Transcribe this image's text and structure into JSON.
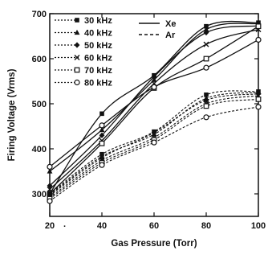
{
  "chart_data": {
    "type": "line",
    "xlabel": "Gas Pressure (Torr)",
    "ylabel": "Firing Voltage (Vrms)",
    "xlim": [
      20,
      100
    ],
    "ylim": [
      250,
      700
    ],
    "xticks": [
      20,
      40,
      60,
      80,
      100
    ],
    "yticks": [
      300,
      400,
      500,
      600,
      700
    ],
    "x_tick_labels": [
      "20",
      "40",
      "60",
      "80",
      "100"
    ],
    "y_tick_labels": [
      "300",
      "400",
      "500",
      "600",
      "700"
    ],
    "x_stray_mark": "·",
    "grid": false,
    "legend_position": "top-left",
    "legend_frequency": [
      "30 kHz",
      "40 kHz",
      "50 kHz",
      "60 kHz",
      "70 kHz",
      "80 kHz"
    ],
    "legend_gas": [
      {
        "label": "Xe",
        "dash": "solid"
      },
      {
        "label": "Ar",
        "dash": "dashed"
      }
    ],
    "x": [
      20,
      40,
      60,
      80,
      100
    ],
    "series": [
      {
        "gas": "Xe",
        "freq": "30 kHz",
        "marker": "filled-square",
        "dash": "solid",
        "values": [
          300,
          478,
          563,
          672,
          680
        ]
      },
      {
        "gas": "Xe",
        "freq": "40 kHz",
        "marker": "filled-triangle",
        "dash": "solid",
        "values": [
          350,
          442,
          553,
          665,
          678
        ]
      },
      {
        "gas": "Xe",
        "freq": "50 kHz",
        "marker": "filled-diamond",
        "dash": "solid",
        "values": [
          318,
          430,
          560,
          658,
          673
        ]
      },
      {
        "gas": "Xe",
        "freq": "60 kHz",
        "marker": "cross",
        "dash": "solid",
        "values": [
          310,
          418,
          545,
          632,
          665
        ]
      },
      {
        "gas": "Xe",
        "freq": "70 kHz",
        "marker": "open-square",
        "dash": "solid",
        "values": [
          300,
          412,
          535,
          600,
          672
        ]
      },
      {
        "gas": "Xe",
        "freq": "80 kHz",
        "marker": "open-circle",
        "dash": "solid",
        "values": [
          360,
          452,
          537,
          580,
          642
        ]
      },
      {
        "gas": "Ar",
        "freq": "30 kHz",
        "marker": "filled-square",
        "dash": "dashed",
        "values": [
          300,
          388,
          438,
          520,
          527
        ]
      },
      {
        "gas": "Ar",
        "freq": "40 kHz",
        "marker": "filled-triangle",
        "dash": "dashed",
        "values": [
          298,
          383,
          432,
          512,
          525
        ]
      },
      {
        "gas": "Ar",
        "freq": "50 kHz",
        "marker": "filled-diamond",
        "dash": "dashed",
        "values": [
          296,
          380,
          436,
          508,
          522
        ]
      },
      {
        "gas": "Ar",
        "freq": "60 kHz",
        "marker": "cross",
        "dash": "dashed",
        "values": [
          292,
          374,
          425,
          500,
          518
        ]
      },
      {
        "gas": "Ar",
        "freq": "70 kHz",
        "marker": "open-square",
        "dash": "dashed",
        "values": [
          289,
          369,
          420,
          495,
          510
        ]
      },
      {
        "gas": "Ar",
        "freq": "80 kHz",
        "marker": "open-circle",
        "dash": "dashed",
        "values": [
          284,
          364,
          414,
          470,
          493
        ]
      }
    ]
  }
}
